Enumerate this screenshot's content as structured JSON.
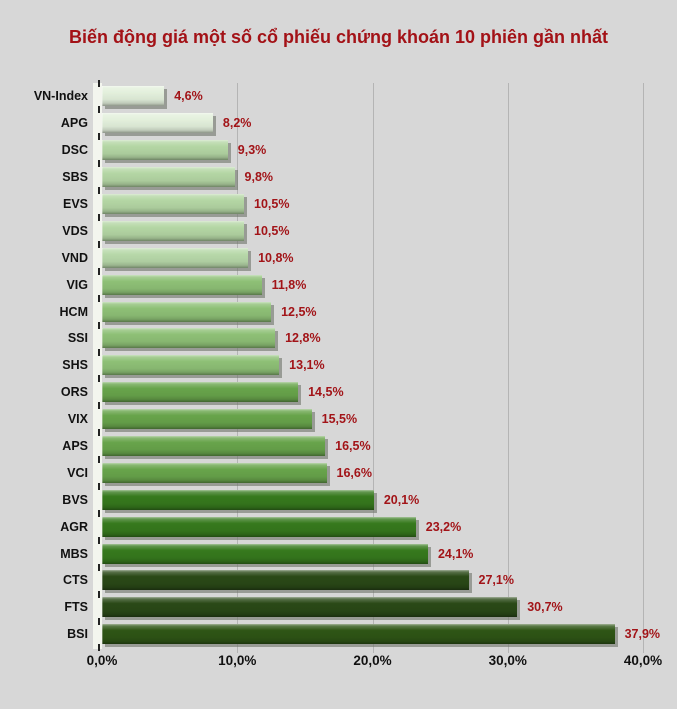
{
  "chart_data": {
    "type": "bar",
    "orientation": "horizontal",
    "title": "Biến động giá một số cổ phiếu chứng khoán 10 phiên gần nhất",
    "categories": [
      "VN-Index",
      "APG",
      "DSC",
      "SBS",
      "EVS",
      "VDS",
      "VND",
      "VIG",
      "HCM",
      "SSI",
      "SHS",
      "ORS",
      "VIX",
      "APS",
      "VCI",
      "BVS",
      "AGR",
      "MBS",
      "CTS",
      "FTS",
      "BSI"
    ],
    "values": [
      4.6,
      8.2,
      9.3,
      9.8,
      10.5,
      10.5,
      10.8,
      11.8,
      12.5,
      12.8,
      13.1,
      14.5,
      15.5,
      16.5,
      16.6,
      20.1,
      23.2,
      24.1,
      27.1,
      30.7,
      37.9
    ],
    "value_labels": [
      "4,6%",
      "8,2%",
      "9,3%",
      "9,8%",
      "10,5%",
      "10,5%",
      "10,8%",
      "11,8%",
      "12,5%",
      "12,8%",
      "13,1%",
      "14,5%",
      "15,5%",
      "16,5%",
      "16,6%",
      "20,1%",
      "23,2%",
      "24,1%",
      "27,1%",
      "30,7%",
      "37,9%"
    ],
    "bar_colors": [
      "#e3f0dc",
      "#e3f0dc",
      "#b4d6a4",
      "#b4d6a4",
      "#b4d6a4",
      "#b4d6a4",
      "#b7d8a9",
      "#8ec076",
      "#8ec076",
      "#8ec076",
      "#8ec076",
      "#68a44b",
      "#68a44b",
      "#68a44b",
      "#68a44b",
      "#36791d",
      "#36791d",
      "#36791d",
      "#2a4917",
      "#2a4917",
      "#2e5515"
    ],
    "x_axis": {
      "tick_labels": [
        "0,0%",
        "10,0%",
        "20,0%",
        "30,0%",
        "40,0%"
      ],
      "tick_values": [
        0,
        10,
        20,
        30,
        40
      ],
      "max_tick": 40
    },
    "xlim": [
      0,
      42.5
    ],
    "grid": "vertical gridlines at x ticks",
    "legend": "none"
  },
  "colors": {
    "background": "#d7d7d7",
    "title": "#a31217",
    "value_label": "#a21418",
    "category_label": "#111111",
    "axis_label": "#111111",
    "gridline": "#b4b4b4",
    "wall": "#f3f5ee",
    "tick": "#222222",
    "bar_shadow": "rgba(110,115,105,0.6)"
  }
}
